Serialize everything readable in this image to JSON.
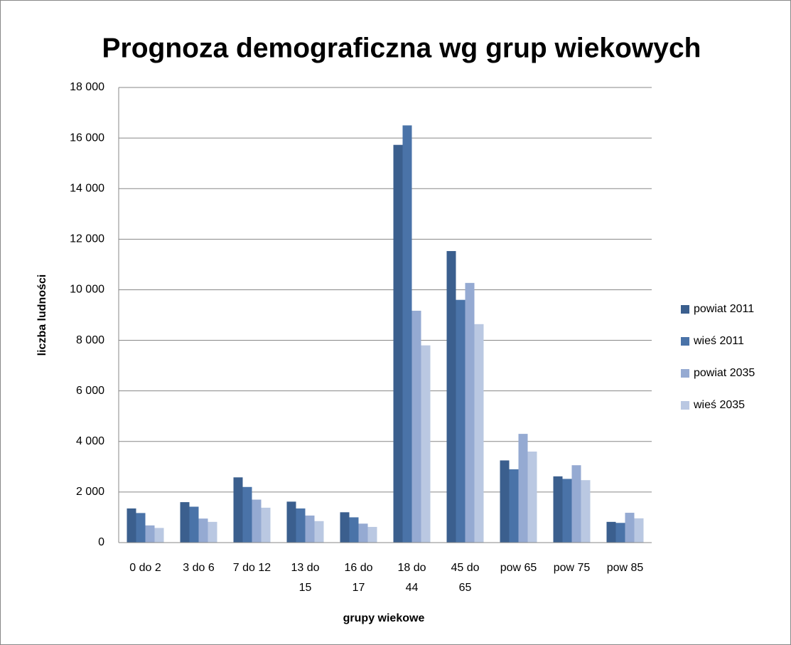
{
  "chart_data": {
    "type": "bar",
    "title": "Prognoza demograficzna wg grup wiekowych",
    "x_label": "grupy wiekowe",
    "y_label": "liczba ludności",
    "categories": [
      "0 do 2",
      "3 do 6",
      "7 do 12",
      "13 do 15",
      "16 do 17",
      "18 do 44",
      "45 do 65",
      "pow 65",
      "pow 75",
      "pow 85"
    ],
    "series": [
      {
        "name": "powiat 2011",
        "color": "#3b5f8e",
        "values": [
          1350,
          1600,
          2580,
          1620,
          1200,
          15730,
          11530,
          3250,
          2620,
          820
        ]
      },
      {
        "name": "wieś 2011",
        "color": "#4a73a8",
        "values": [
          1170,
          1420,
          2200,
          1350,
          1000,
          16500,
          9600,
          2900,
          2520,
          780
        ]
      },
      {
        "name": "powiat 2035",
        "color": "#95aad2",
        "values": [
          680,
          950,
          1700,
          1070,
          750,
          9170,
          10270,
          4300,
          3060,
          1180
        ]
      },
      {
        "name": "wieś 2035",
        "color": "#bac8e2",
        "values": [
          580,
          820,
          1380,
          850,
          620,
          7800,
          8640,
          3600,
          2470,
          960
        ]
      }
    ],
    "ylim": [
      0,
      18000
    ],
    "yticks": [
      0,
      {
        "value": 2000,
        "label": "2 000"
      },
      {
        "value": 4000,
        "label": "4 000"
      },
      {
        "value": 6000,
        "label": "6 000"
      },
      {
        "value": 8000,
        "label": "8 000"
      },
      {
        "value": 10000,
        "label": "10 000"
      },
      {
        "value": 12000,
        "label": "12 000"
      },
      {
        "value": 14000,
        "label": "14 000"
      },
      {
        "value": 16000,
        "label": "16 000"
      },
      {
        "value": 18000,
        "label": "18 000"
      }
    ],
    "grid": true,
    "legend": "right"
  }
}
